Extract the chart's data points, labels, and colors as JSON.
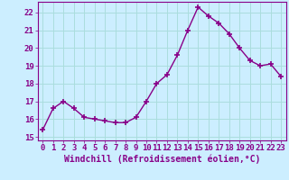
{
  "x": [
    0,
    1,
    2,
    3,
    4,
    5,
    6,
    7,
    8,
    9,
    10,
    11,
    12,
    13,
    14,
    15,
    16,
    17,
    18,
    19,
    20,
    21,
    22,
    23
  ],
  "y": [
    15.4,
    16.6,
    17.0,
    16.6,
    16.1,
    16.0,
    15.9,
    15.8,
    15.8,
    16.1,
    17.0,
    18.0,
    18.5,
    19.6,
    21.0,
    22.3,
    21.8,
    21.4,
    20.8,
    20.0,
    19.3,
    19.0,
    19.1,
    18.4
  ],
  "line_color": "#880088",
  "marker": "+",
  "markersize": 4,
  "linewidth": 1.0,
  "xlabel": "Windchill (Refroidissement éolien,°C)",
  "xlim": [
    -0.5,
    23.5
  ],
  "ylim": [
    14.8,
    22.6
  ],
  "yticks": [
    15,
    16,
    17,
    18,
    19,
    20,
    21,
    22
  ],
  "xticks": [
    0,
    1,
    2,
    3,
    4,
    5,
    6,
    7,
    8,
    9,
    10,
    11,
    12,
    13,
    14,
    15,
    16,
    17,
    18,
    19,
    20,
    21,
    22,
    23
  ],
  "bg_color": "#cceeff",
  "grid_color": "#aadddd",
  "label_color": "#880088",
  "tick_color": "#880088",
  "font_size": 6.5,
  "xlabel_fontsize": 7
}
